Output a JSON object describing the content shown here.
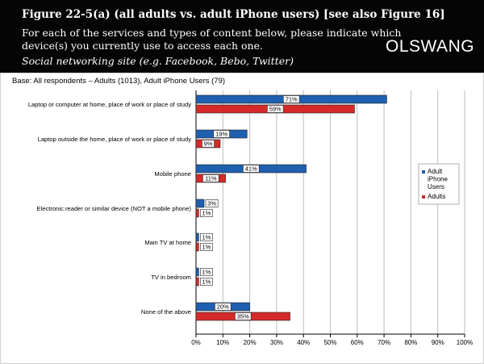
{
  "header": {
    "title": "Figure 22-5(a) (all adults vs. adult iPhone users) [see also Figure 16]",
    "line1": "For each of the services and types of content below, please indicate which",
    "line2": "device(s) you currently use to access each one.",
    "line3": "Social networking site (e.g. Facebook, Bebo, Twitter)",
    "logo": "OLSWANG"
  },
  "base_note": "Base: All respondents – Adults (1013), Adult iPhone Users (79)",
  "colors": {
    "iphone": "#1f5fb0",
    "adults": "#d42a2a"
  },
  "chart_data": {
    "type": "bar",
    "orientation": "horizontal",
    "categories": [
      "Laptop or computer at home, place of work or place of study",
      "Laptop outside the home, place of work or place of study",
      "Mobile phone",
      "Electronic reader or similar device (NOT  a mobile phone)",
      "Main TV at home",
      "TV in bedroom",
      "None of the above"
    ],
    "series": [
      {
        "name": "Adult iPhone Users",
        "values": [
          71,
          19,
          41,
          3,
          1,
          1,
          20
        ],
        "labels": [
          "71%",
          "19%",
          "41%",
          "3%",
          "1%",
          "1%",
          "20%"
        ]
      },
      {
        "name": "Adults",
        "values": [
          59,
          9,
          11,
          1,
          1,
          1,
          35
        ],
        "labels": [
          "59%",
          "9%",
          "11%",
          "1%",
          "1%",
          "1%",
          "35%"
        ]
      }
    ],
    "xlim": [
      0,
      100
    ],
    "xticks": [
      "0%",
      "10%",
      "20%",
      "30%",
      "40%",
      "50%",
      "60%",
      "70%",
      "80%",
      "90%",
      "100%"
    ],
    "legend": {
      "position": "right",
      "entries": [
        "Adult iPhone Users",
        "Adults"
      ]
    },
    "grid": true
  }
}
